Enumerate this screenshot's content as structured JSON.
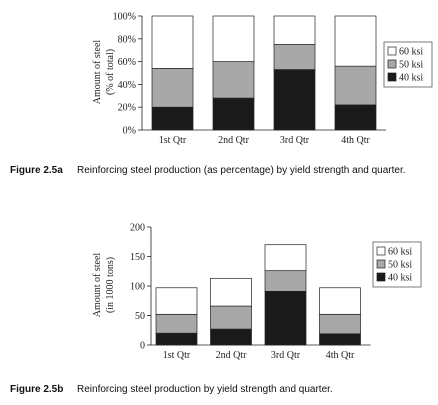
{
  "chart_data": [
    {
      "type": "bar",
      "stacked": true,
      "categories": [
        "1st Qtr",
        "2nd Qtr",
        "3rd Qtr",
        "4th Qtr"
      ],
      "series": [
        {
          "name": "40 ksi",
          "values": [
            20,
            28,
            53,
            22
          ],
          "color": "#1a1a1a"
        },
        {
          "name": "50 ksi",
          "values": [
            34,
            32,
            22,
            34
          ],
          "color": "#a8a8a8"
        },
        {
          "name": "60 ksi",
          "values": [
            46,
            40,
            25,
            44
          ],
          "color": "#ffffff"
        }
      ],
      "ylabel_line1": "Amount of steel",
      "ylabel_line2": "(% of total)",
      "yticks": [
        "0%",
        "20%",
        "40%",
        "60%",
        "80%",
        "100%"
      ],
      "ylim": [
        0,
        100
      ],
      "legend_position": "right",
      "caption_label": "Figure 2.5a",
      "caption_text": "Reinforcing steel production (as percentage) by yield strength and quarter."
    },
    {
      "type": "bar",
      "stacked": true,
      "categories": [
        "1st Qtr",
        "2nd Qtr",
        "3rd Qtr",
        "4th Qtr"
      ],
      "series": [
        {
          "name": "40 ksi",
          "values": [
            20,
            27,
            91,
            19
          ],
          "color": "#1a1a1a"
        },
        {
          "name": "50 ksi",
          "values": [
            32,
            39,
            35,
            33
          ],
          "color": "#a8a8a8"
        },
        {
          "name": "60 ksi",
          "values": [
            45,
            47,
            44,
            45
          ],
          "color": "#ffffff"
        }
      ],
      "ylabel_line1": "Amount of steel",
      "ylabel_line2": "(in 1000 tons)",
      "yticks": [
        "0",
        "50",
        "100",
        "150",
        "200"
      ],
      "ylim": [
        0,
        200
      ],
      "legend_position": "right",
      "caption_label": "Figure 2.5b",
      "caption_text": "Reinforcing steel production by yield strength and quarter."
    }
  ]
}
